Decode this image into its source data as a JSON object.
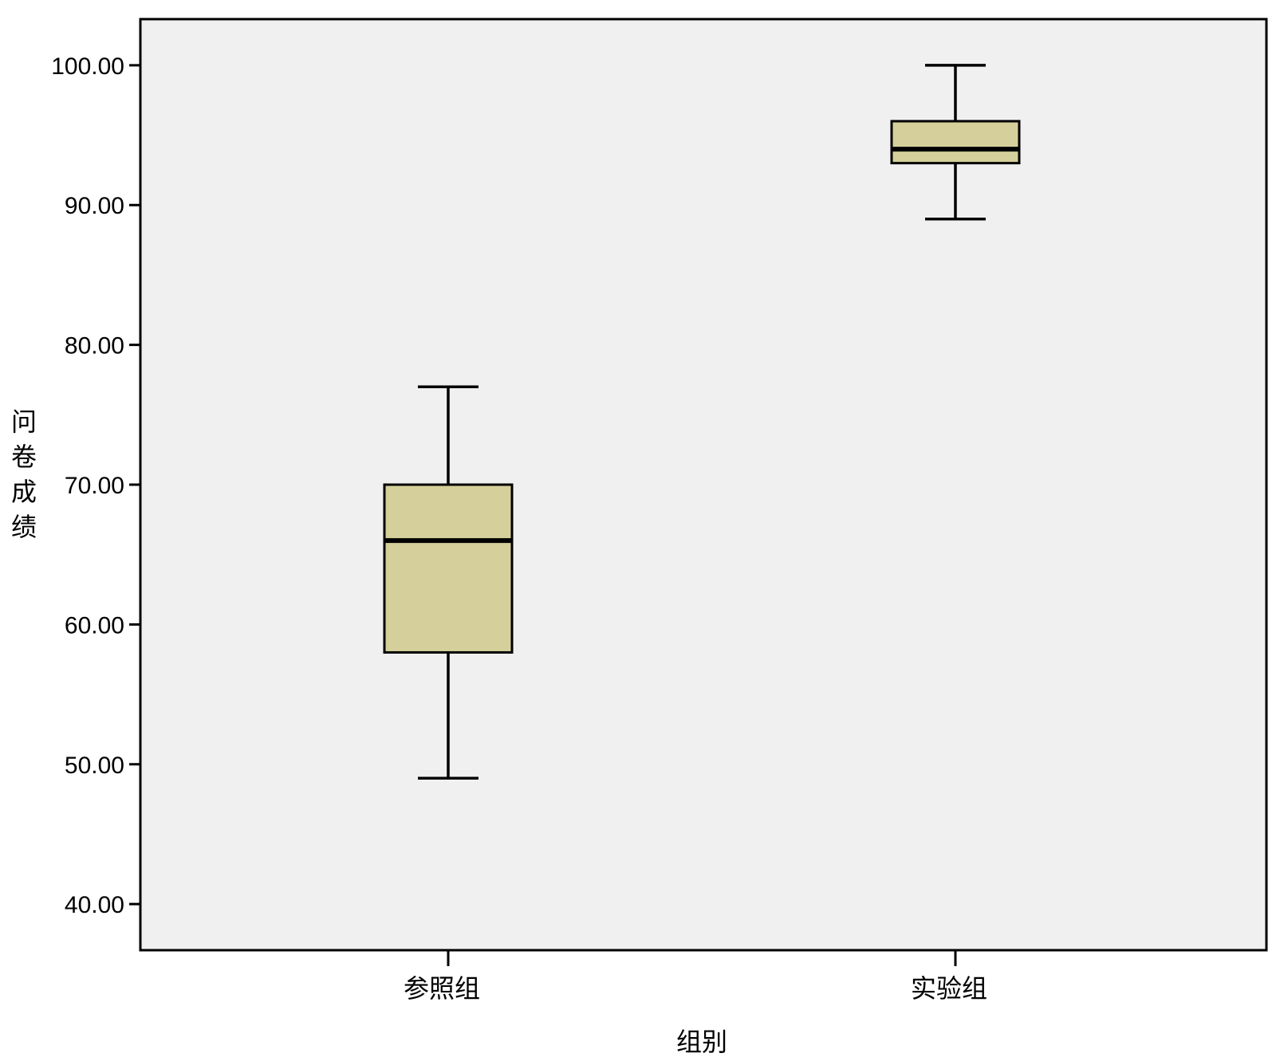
{
  "chart_data": {
    "type": "boxplot",
    "xlabel": "组别",
    "ylabel": "问卷成绩",
    "ylim": [
      36.7,
      103.3
    ],
    "yticks": [
      40,
      50,
      60,
      70,
      80,
      90,
      100
    ],
    "ytick_labels": [
      "40.00",
      "50.00",
      "60.00",
      "70.00",
      "80.00",
      "90.00",
      "100.00"
    ],
    "categories": [
      "参照组",
      "实验组"
    ],
    "boxes": [
      {
        "category": "参照组",
        "min": 49,
        "q1": 58,
        "median": 66,
        "q3": 70,
        "max": 77
      },
      {
        "category": "实验组",
        "min": 89,
        "q1": 93,
        "median": 94,
        "q3": 96,
        "max": 100
      }
    ],
    "grid": false,
    "colors": {
      "box_fill": "#d5d09b",
      "plot_background": "#f0f0f0",
      "line": "#000000"
    }
  }
}
